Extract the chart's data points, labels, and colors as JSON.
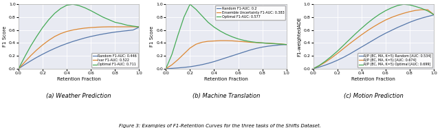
{
  "fig_width": 6.4,
  "fig_height": 1.86,
  "dpi": 100,
  "background_color": "#e8eaf2",
  "subtitles": [
    "(a) Weather Prediction",
    "(b) Machine Translation",
    "(c) Motion Prediction"
  ],
  "figure_caption": "Figure 3: Examples of F1-Retention Curves for the three tasks of the Shifts Dataset.",
  "subplot1": {
    "ylabel": "F1 Score",
    "xlabel": "Retention Fraction",
    "ylim": [
      0.0,
      1.0
    ],
    "xlim": [
      0.0,
      1.0
    ],
    "yticks": [
      0.0,
      0.2,
      0.4,
      0.6,
      0.8,
      1.0
    ],
    "xticks": [
      0.0,
      0.2,
      0.4,
      0.6,
      0.8,
      1.0
    ],
    "legend_loc": "lower right",
    "lines": [
      {
        "label": "Random F1-AUC: 0.446",
        "color": "#5577aa",
        "x": [
          0.0,
          0.05,
          0.1,
          0.15,
          0.2,
          0.25,
          0.3,
          0.35,
          0.4,
          0.45,
          0.5,
          0.55,
          0.6,
          0.65,
          0.7,
          0.75,
          0.8,
          0.85,
          0.9,
          0.95,
          1.0
        ],
        "y": [
          0.0,
          0.062,
          0.12,
          0.175,
          0.225,
          0.272,
          0.315,
          0.355,
          0.39,
          0.422,
          0.45,
          0.477,
          0.5,
          0.52,
          0.538,
          0.554,
          0.568,
          0.58,
          0.59,
          0.6,
          0.645
        ]
      },
      {
        "label": "Ivar F1-AUC: 0.522",
        "color": "#dd8833",
        "x": [
          0.0,
          0.05,
          0.1,
          0.15,
          0.2,
          0.25,
          0.3,
          0.35,
          0.4,
          0.45,
          0.5,
          0.55,
          0.6,
          0.65,
          0.7,
          0.75,
          0.8,
          0.85,
          0.9,
          0.95,
          1.0
        ],
        "y": [
          0.0,
          0.1,
          0.2,
          0.29,
          0.37,
          0.44,
          0.5,
          0.545,
          0.578,
          0.6,
          0.617,
          0.63,
          0.638,
          0.644,
          0.648,
          0.65,
          0.65,
          0.65,
          0.65,
          0.65,
          0.648
        ]
      },
      {
        "label": "Optimal F1-AUC: 0.711",
        "color": "#44aa55",
        "x": [
          0.0,
          0.05,
          0.1,
          0.15,
          0.2,
          0.25,
          0.3,
          0.35,
          0.4,
          0.45,
          0.5,
          0.55,
          0.6,
          0.65,
          0.7,
          0.75,
          0.8,
          0.85,
          0.9,
          0.95,
          1.0
        ],
        "y": [
          0.0,
          0.18,
          0.35,
          0.5,
          0.64,
          0.76,
          0.86,
          0.935,
          0.985,
          1.0,
          0.98,
          0.945,
          0.9,
          0.85,
          0.8,
          0.76,
          0.72,
          0.7,
          0.675,
          0.66,
          0.648
        ]
      }
    ]
  },
  "subplot2": {
    "ylabel": "F1 Score",
    "xlabel": "Retention Fraction",
    "ylim": [
      0.0,
      1.0
    ],
    "xlim": [
      0.0,
      1.0
    ],
    "yticks": [
      0.0,
      0.2,
      0.4,
      0.6,
      0.8,
      1.0
    ],
    "xticks": [
      0.0,
      0.2,
      0.4,
      0.6,
      0.8,
      1.0
    ],
    "legend_loc": "upper right",
    "lines": [
      {
        "label": "Random F1-AUC: 0.2",
        "color": "#5577aa",
        "x": [
          0.0,
          0.05,
          0.1,
          0.15,
          0.2,
          0.25,
          0.3,
          0.35,
          0.4,
          0.45,
          0.5,
          0.55,
          0.6,
          0.65,
          0.7,
          0.75,
          0.8,
          0.85,
          0.9,
          0.95,
          1.0
        ],
        "y": [
          0.0,
          0.005,
          0.012,
          0.02,
          0.03,
          0.045,
          0.063,
          0.085,
          0.11,
          0.14,
          0.17,
          0.2,
          0.23,
          0.26,
          0.29,
          0.315,
          0.335,
          0.35,
          0.36,
          0.37,
          0.375
        ]
      },
      {
        "label": "Ensemble Uncertainty F1-AUC: 0.383",
        "color": "#dd8833",
        "x": [
          0.0,
          0.05,
          0.1,
          0.15,
          0.2,
          0.25,
          0.3,
          0.35,
          0.4,
          0.45,
          0.5,
          0.55,
          0.6,
          0.65,
          0.7,
          0.75,
          0.8,
          0.85,
          0.9,
          0.95,
          1.0
        ],
        "y": [
          0.0,
          0.06,
          0.14,
          0.23,
          0.32,
          0.38,
          0.41,
          0.425,
          0.43,
          0.435,
          0.435,
          0.432,
          0.425,
          0.418,
          0.41,
          0.405,
          0.4,
          0.395,
          0.39,
          0.385,
          0.375
        ]
      },
      {
        "label": "Optimal F1-AUC: 0.577",
        "color": "#44aa55",
        "x": [
          0.0,
          0.05,
          0.1,
          0.15,
          0.2,
          0.25,
          0.3,
          0.35,
          0.4,
          0.45,
          0.5,
          0.55,
          0.6,
          0.65,
          0.7,
          0.75,
          0.8,
          0.85,
          0.9,
          0.95,
          1.0
        ],
        "y": [
          0.0,
          0.22,
          0.52,
          0.8,
          1.0,
          0.92,
          0.82,
          0.72,
          0.645,
          0.585,
          0.535,
          0.495,
          0.462,
          0.438,
          0.42,
          0.408,
          0.4,
          0.393,
          0.388,
          0.382,
          0.375
        ]
      }
    ]
  },
  "subplot3": {
    "ylabel": "F1-weightedADE",
    "xlabel": "Retention Fraction",
    "ylim": [
      0.0,
      1.0
    ],
    "xlim": [
      0.0,
      1.0
    ],
    "yticks": [
      0.0,
      0.2,
      0.4,
      0.6,
      0.8,
      1.0
    ],
    "xticks": [
      0.0,
      0.2,
      0.4,
      0.6,
      0.8,
      1.0
    ],
    "legend_loc": "lower right",
    "lines": [
      {
        "label": "R/P (BC, MA, K=5) Random [AUC: 0.534]",
        "color": "#5577aa",
        "x": [
          0.0,
          0.05,
          0.1,
          0.15,
          0.2,
          0.25,
          0.3,
          0.35,
          0.4,
          0.45,
          0.5,
          0.55,
          0.6,
          0.65,
          0.7,
          0.75,
          0.8,
          0.85,
          0.9,
          0.95,
          1.0
        ],
        "y": [
          0.0,
          0.025,
          0.055,
          0.09,
          0.13,
          0.175,
          0.225,
          0.28,
          0.335,
          0.39,
          0.445,
          0.5,
          0.55,
          0.595,
          0.64,
          0.68,
          0.72,
          0.755,
          0.785,
          0.81,
          0.835
        ]
      },
      {
        "label": "R/P (BC, MA, K=5) [AUC: 0.674]",
        "color": "#dd8833",
        "x": [
          0.0,
          0.05,
          0.1,
          0.15,
          0.2,
          0.25,
          0.3,
          0.35,
          0.4,
          0.45,
          0.5,
          0.55,
          0.6,
          0.65,
          0.7,
          0.75,
          0.8,
          0.85,
          0.9,
          0.95,
          1.0
        ],
        "y": [
          0.0,
          0.045,
          0.1,
          0.165,
          0.235,
          0.31,
          0.385,
          0.455,
          0.525,
          0.59,
          0.65,
          0.705,
          0.755,
          0.796,
          0.83,
          0.86,
          0.885,
          0.905,
          0.915,
          0.915,
          0.84
        ]
      },
      {
        "label": "R/P (BC, MA, K=5) Optimal [AUC: 0.699]",
        "color": "#44aa55",
        "x": [
          0.0,
          0.05,
          0.1,
          0.15,
          0.2,
          0.25,
          0.3,
          0.35,
          0.4,
          0.45,
          0.5,
          0.55,
          0.6,
          0.65,
          0.7,
          0.75,
          0.8,
          0.85,
          0.9,
          0.95,
          1.0
        ],
        "y": [
          0.0,
          0.05,
          0.115,
          0.19,
          0.27,
          0.36,
          0.45,
          0.54,
          0.625,
          0.706,
          0.78,
          0.845,
          0.9,
          0.945,
          0.98,
          1.0,
          0.99,
          0.965,
          0.935,
          0.895,
          0.84
        ]
      }
    ]
  }
}
